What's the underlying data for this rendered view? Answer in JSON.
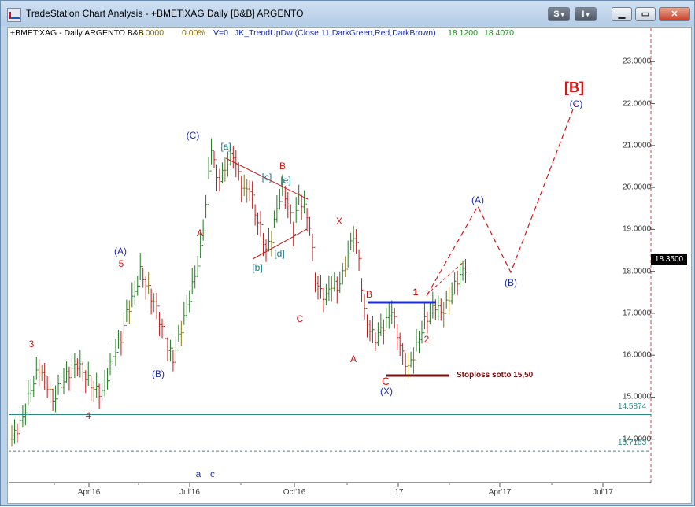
{
  "window": {
    "title": "TradeStation Chart Analysis - +BMET:XAG Daily [B&B] ARGENTO",
    "buttons": {
      "s_label": "S",
      "i_label": "I"
    }
  },
  "info_bar": {
    "symbol": "+BMET:XAG - Daily  ARGENTO  B&B",
    "change": "0.0000",
    "change_pct": "0.00%",
    "volume": "V=0",
    "indicator": "JK_TrendUpDw (Close,11,DarkGreen,Red,DarkBrown)",
    "value1": "18.1200",
    "value2": "18.4070"
  },
  "chart_data": {
    "type": "bar",
    "description_series": "daily OHLC price bars",
    "y_ticks": [
      "23.0000",
      "22.0000",
      "21.0000",
      "20.0000",
      "19.0000",
      "18.0000",
      "17.0000",
      "16.0000",
      "15.0000",
      "14.0000"
    ],
    "y_range": [
      13.0,
      23.7
    ],
    "x_ticks": [
      "Apr'16",
      "Jul'16",
      "Oct'16",
      "'17",
      "Apr'17",
      "Jul'17"
    ],
    "last_price": "18.3500",
    "levels": [
      {
        "value": 14.5874,
        "label": "14.5874",
        "style": "solid"
      },
      {
        "value": 13.7103,
        "label": "13.7103",
        "style": "dashed"
      }
    ],
    "stoploss_label": "Stoploss  sotto 15,50",
    "wave_labels": {
      "blue": [
        "(A)",
        "(B)",
        "(C)",
        "(X)",
        "(A)",
        "(B)",
        "(C)"
      ],
      "red": [
        "3",
        "4",
        "5",
        "A",
        "B",
        "C",
        "X",
        "A",
        "B",
        "C",
        "1",
        "2"
      ],
      "teal": [
        "[a]",
        "[b]",
        "[c]",
        "[d]",
        "[e]"
      ],
      "big": "[B]",
      "bottom": [
        "a",
        "c"
      ]
    },
    "price_path": [
      [
        0,
        14.0
      ],
      [
        4,
        14.5
      ],
      [
        7,
        15.2
      ],
      [
        10,
        15.7
      ],
      [
        13,
        15.3
      ],
      [
        15,
        14.9
      ],
      [
        17,
        15.2
      ],
      [
        20,
        15.5
      ],
      [
        24,
        15.8
      ],
      [
        27,
        15.5
      ],
      [
        30,
        15.2
      ],
      [
        33,
        15.1
      ],
      [
        35,
        15.5
      ],
      [
        37,
        16.0
      ],
      [
        40,
        16.4
      ],
      [
        42,
        17.0
      ],
      [
        45,
        17.5
      ],
      [
        47,
        18.0
      ],
      [
        49,
        17.7
      ],
      [
        51,
        17.4
      ],
      [
        53,
        17.1
      ],
      [
        55,
        16.6
      ],
      [
        57,
        16.2
      ],
      [
        59,
        15.9
      ],
      [
        61,
        16.4
      ],
      [
        63,
        16.9
      ],
      [
        65,
        17.4
      ],
      [
        67,
        17.9
      ],
      [
        69,
        18.5
      ],
      [
        71,
        19.6
      ],
      [
        73,
        21.0
      ],
      [
        75,
        20.2
      ],
      [
        77,
        20.3
      ],
      [
        79,
        20.6
      ],
      [
        81,
        20.8
      ],
      [
        83,
        20.3
      ],
      [
        85,
        19.9
      ],
      [
        87,
        20.0
      ],
      [
        89,
        19.4
      ],
      [
        91,
        19.0
      ],
      [
        93,
        18.5
      ],
      [
        95,
        18.8
      ],
      [
        97,
        19.5
      ],
      [
        99,
        20.0
      ],
      [
        101,
        19.6
      ],
      [
        103,
        19.0
      ],
      [
        105,
        19.8
      ],
      [
        107,
        19.5
      ],
      [
        109,
        19.1
      ],
      [
        111,
        17.8
      ],
      [
        113,
        17.5
      ],
      [
        115,
        17.4
      ],
      [
        117,
        17.7
      ],
      [
        119,
        17.6
      ],
      [
        121,
        17.9
      ],
      [
        123,
        18.4
      ],
      [
        125,
        18.9
      ],
      [
        127,
        18.3
      ],
      [
        129,
        17.0
      ],
      [
        131,
        16.6
      ],
      [
        133,
        16.4
      ],
      [
        135,
        16.6
      ],
      [
        137,
        16.8
      ],
      [
        139,
        17.1
      ],
      [
        141,
        16.5
      ],
      [
        143,
        16.0
      ],
      [
        145,
        15.7
      ],
      [
        147,
        16.0
      ],
      [
        149,
        16.4
      ],
      [
        151,
        16.8
      ],
      [
        153,
        17.0
      ],
      [
        155,
        17.2
      ],
      [
        157,
        17.0
      ],
      [
        159,
        17.2
      ],
      [
        161,
        17.5
      ],
      [
        163,
        17.8
      ],
      [
        165,
        18.0
      ],
      [
        167,
        18.2
      ]
    ]
  }
}
